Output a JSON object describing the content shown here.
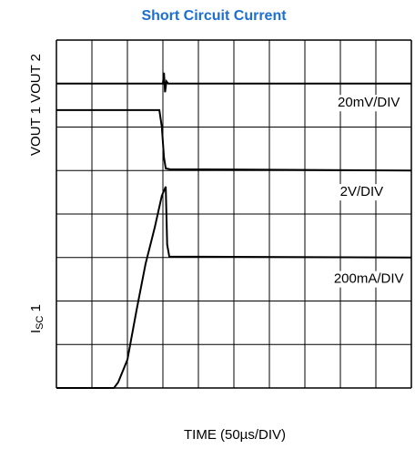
{
  "chart_data": {
    "type": "line",
    "title": "Short Circuit Current",
    "title_color": "#1a6fd1",
    "x_label": "TIME (50µs/DIV)",
    "y_label_top": "VOUT 1 VOUT 2",
    "y_label_bottom": {
      "main": "I",
      "sub": "SC",
      "rest": " 1"
    },
    "xlim": [
      0,
      10
    ],
    "ylim": [
      0,
      8
    ],
    "xgrid": [
      0,
      1,
      2,
      3,
      4,
      5,
      6,
      7,
      8,
      9,
      10
    ],
    "ygrid": [
      0,
      1,
      2,
      3,
      4,
      5,
      6,
      7,
      8
    ],
    "annotations": [
      {
        "text": "20mV/DIV",
        "x": 8.8,
        "y": 6.55
      },
      {
        "text": "2V/DIV",
        "x": 8.6,
        "y": 4.5
      },
      {
        "text": "200mA/DIV",
        "x": 8.8,
        "y": 2.5
      }
    ],
    "series": [
      {
        "name": "VOUT 2",
        "color": "#000000",
        "x": [
          0,
          3.0,
          3.03,
          3.06,
          3.1,
          3.15,
          10
        ],
        "values": [
          7.0,
          7.0,
          7.25,
          6.8,
          7.05,
          7.0,
          7.0
        ]
      },
      {
        "name": "VOUT 1",
        "color": "#000000",
        "x": [
          0,
          2.9,
          2.97,
          3.03,
          3.08,
          3.2,
          10
        ],
        "values": [
          6.39,
          6.39,
          6.0,
          5.3,
          5.05,
          5.03,
          5.0
        ]
      },
      {
        "name": "ISC",
        "color": "#000000",
        "x": [
          0,
          1.62,
          1.74,
          2.0,
          2.26,
          2.51,
          2.77,
          2.97,
          3.08,
          3.12,
          3.18,
          10
        ],
        "values": [
          0,
          0,
          0.13,
          0.65,
          1.8,
          2.85,
          3.69,
          4.42,
          4.63,
          3.3,
          3.02,
          3.0
        ]
      }
    ]
  }
}
